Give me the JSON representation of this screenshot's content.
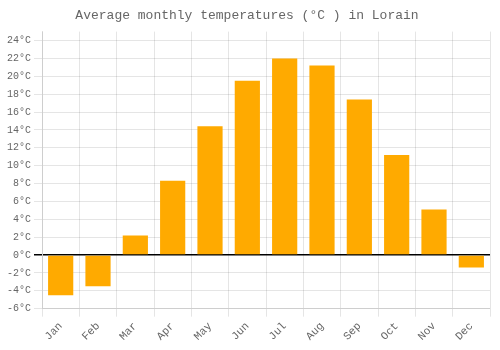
{
  "chart_data": {
    "type": "bar",
    "title": "Average monthly temperatures (°C ) in Lorain",
    "categories": [
      "Jan",
      "Feb",
      "Mar",
      "Apr",
      "May",
      "Jun",
      "Jul",
      "Aug",
      "Sep",
      "Oct",
      "Nov",
      "Dec"
    ],
    "values": [
      -4.5,
      -3.5,
      2.2,
      8.3,
      14.4,
      19.5,
      22.0,
      21.2,
      17.4,
      11.2,
      5.1,
      -1.4
    ],
    "color": "#FFAA00",
    "ylim": [
      -6,
      25
    ],
    "yticks": [
      {
        "value": -6,
        "label": "-6°C"
      },
      {
        "value": -4,
        "label": "-4°C"
      },
      {
        "value": -2,
        "label": "-2°C"
      },
      {
        "value": 0,
        "label": "0°C"
      },
      {
        "value": 2,
        "label": "2°C"
      },
      {
        "value": 4,
        "label": "4°C"
      },
      {
        "value": 6,
        "label": "6°C"
      },
      {
        "value": 8,
        "label": "8°C"
      },
      {
        "value": 10,
        "label": "10°C"
      },
      {
        "value": 12,
        "label": "12°C"
      },
      {
        "value": 14,
        "label": "14°C"
      },
      {
        "value": 16,
        "label": "16°C"
      },
      {
        "value": 18,
        "label": "18°C"
      },
      {
        "value": 20,
        "label": "20°C"
      },
      {
        "value": 22,
        "label": "22°C"
      },
      {
        "value": 24,
        "label": "24°C"
      }
    ],
    "grid": true
  }
}
